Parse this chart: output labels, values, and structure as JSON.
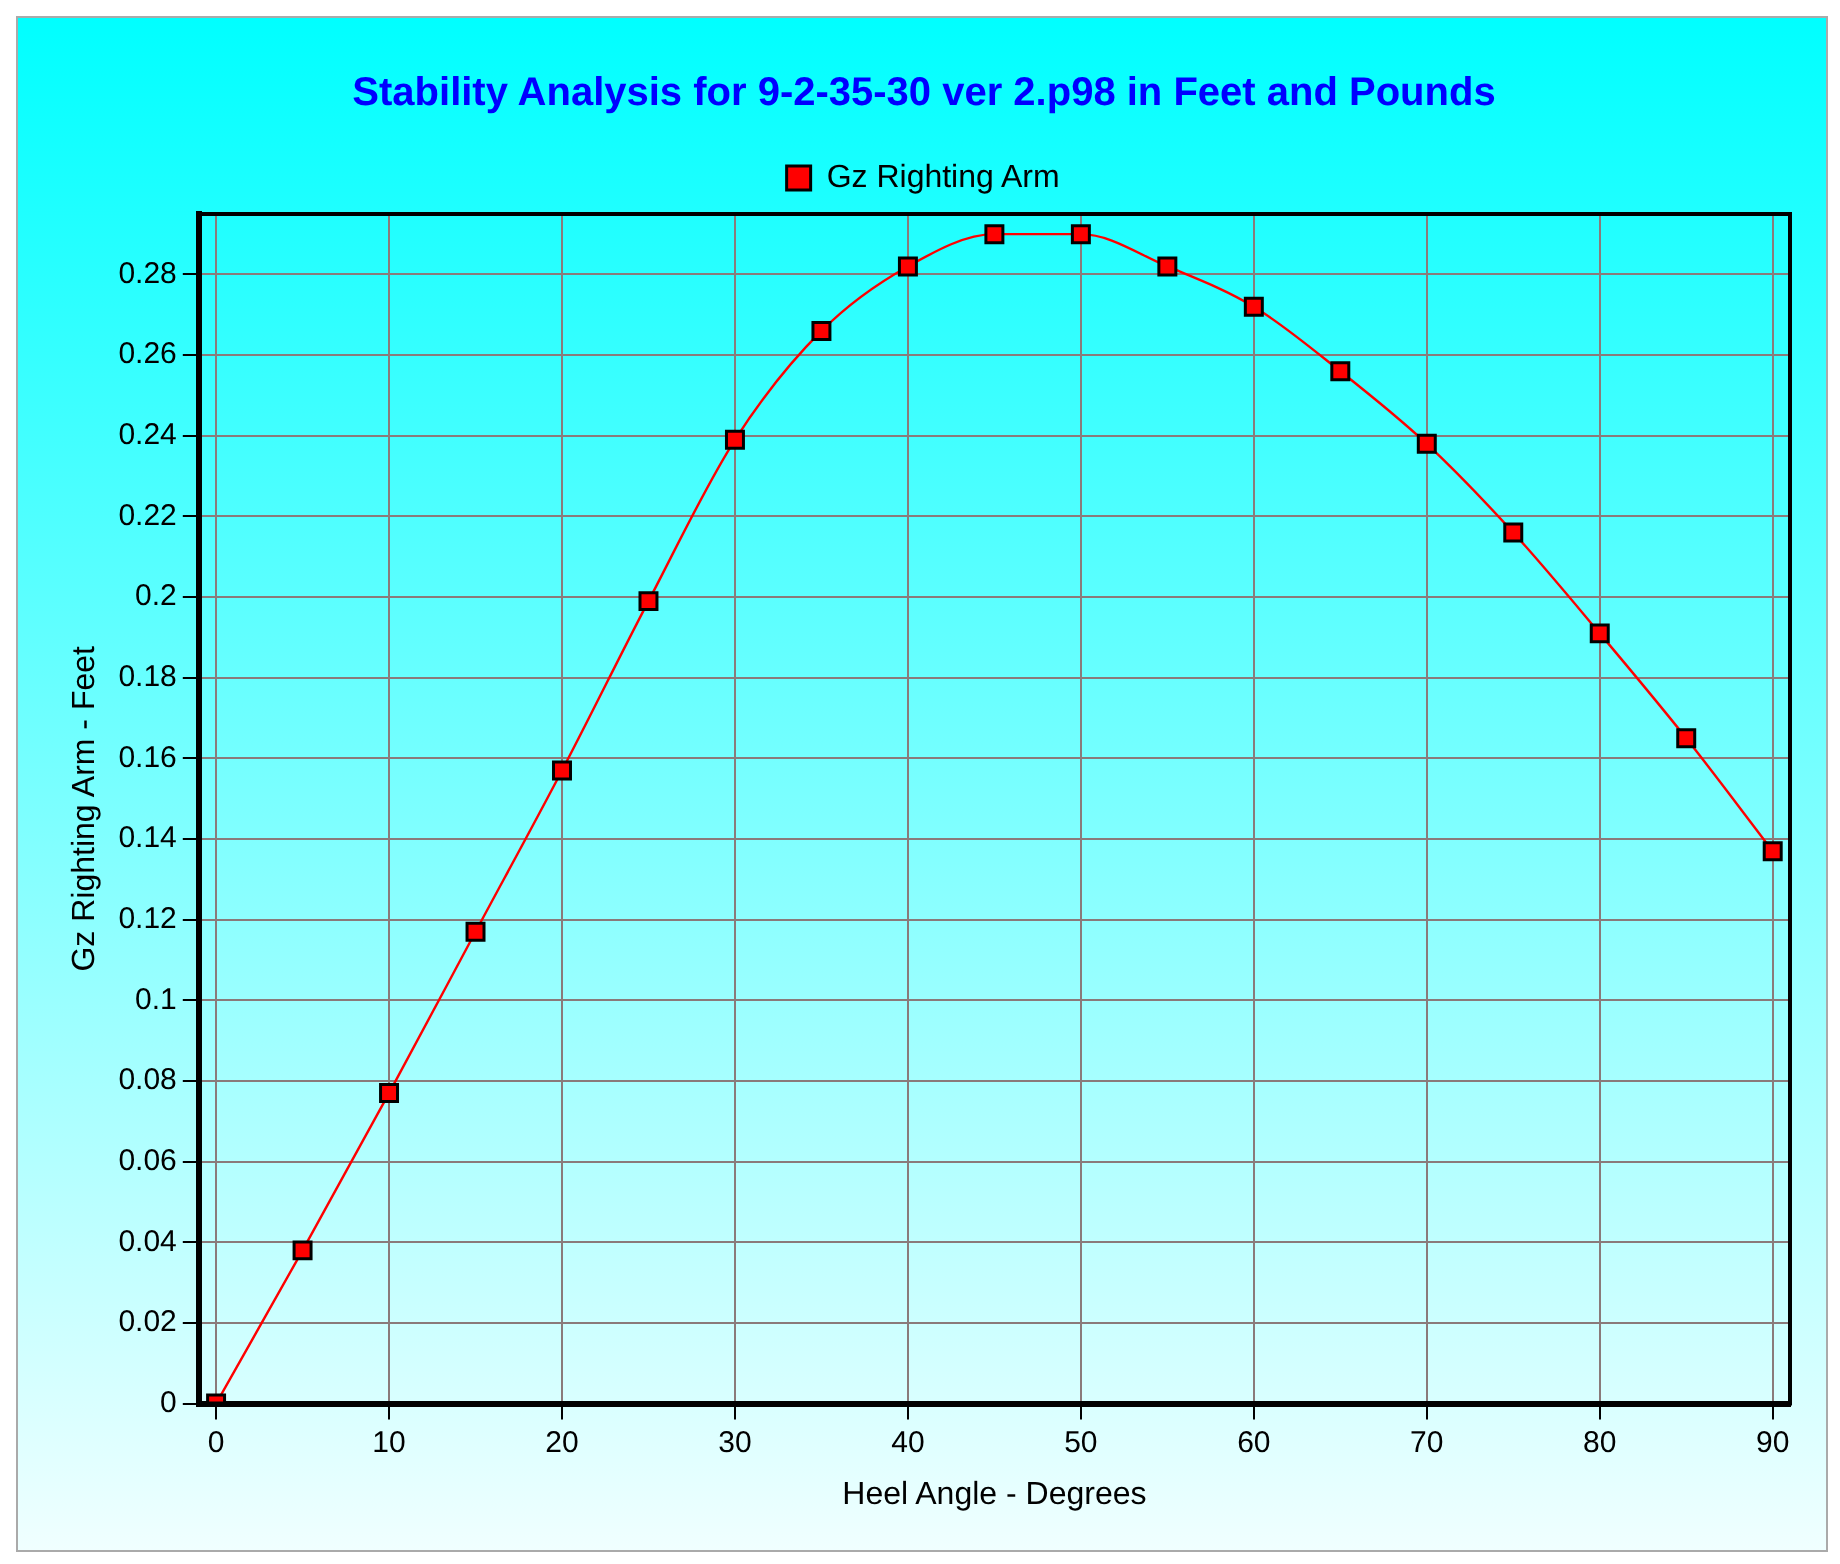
{
  "chart_data": {
    "type": "line",
    "title": "Stability Analysis for 9-2-35-30 ver 2.p98 in Feet and Pounds",
    "xlabel": "Heel Angle - Degrees",
    "ylabel": "Gz Righting Arm - Feet",
    "x": [
      0,
      5,
      10,
      15,
      20,
      25,
      30,
      35,
      40,
      45,
      50,
      55,
      60,
      65,
      70,
      75,
      80,
      85,
      90
    ],
    "series": [
      {
        "name": "Gz Righting Arm",
        "color": "#ff0000",
        "values": [
          0,
          0.038,
          0.077,
          0.117,
          0.157,
          0.199,
          0.239,
          0.266,
          0.282,
          0.29,
          0.29,
          0.282,
          0.272,
          0.256,
          0.238,
          0.216,
          0.191,
          0.165,
          0.137
        ]
      }
    ],
    "xlim": [
      -1,
      91
    ],
    "xticks": [
      0,
      10,
      20,
      30,
      40,
      50,
      60,
      70,
      80,
      90
    ],
    "ylim": [
      0,
      0.295
    ],
    "yticks": [
      0,
      0.02,
      0.04,
      0.06,
      0.08,
      0.1,
      0.12,
      0.14,
      0.16,
      0.18,
      0.2,
      0.22,
      0.24,
      0.26,
      0.28
    ],
    "grid": true,
    "legend": "top",
    "marker": "square",
    "line_style": "solid"
  }
}
